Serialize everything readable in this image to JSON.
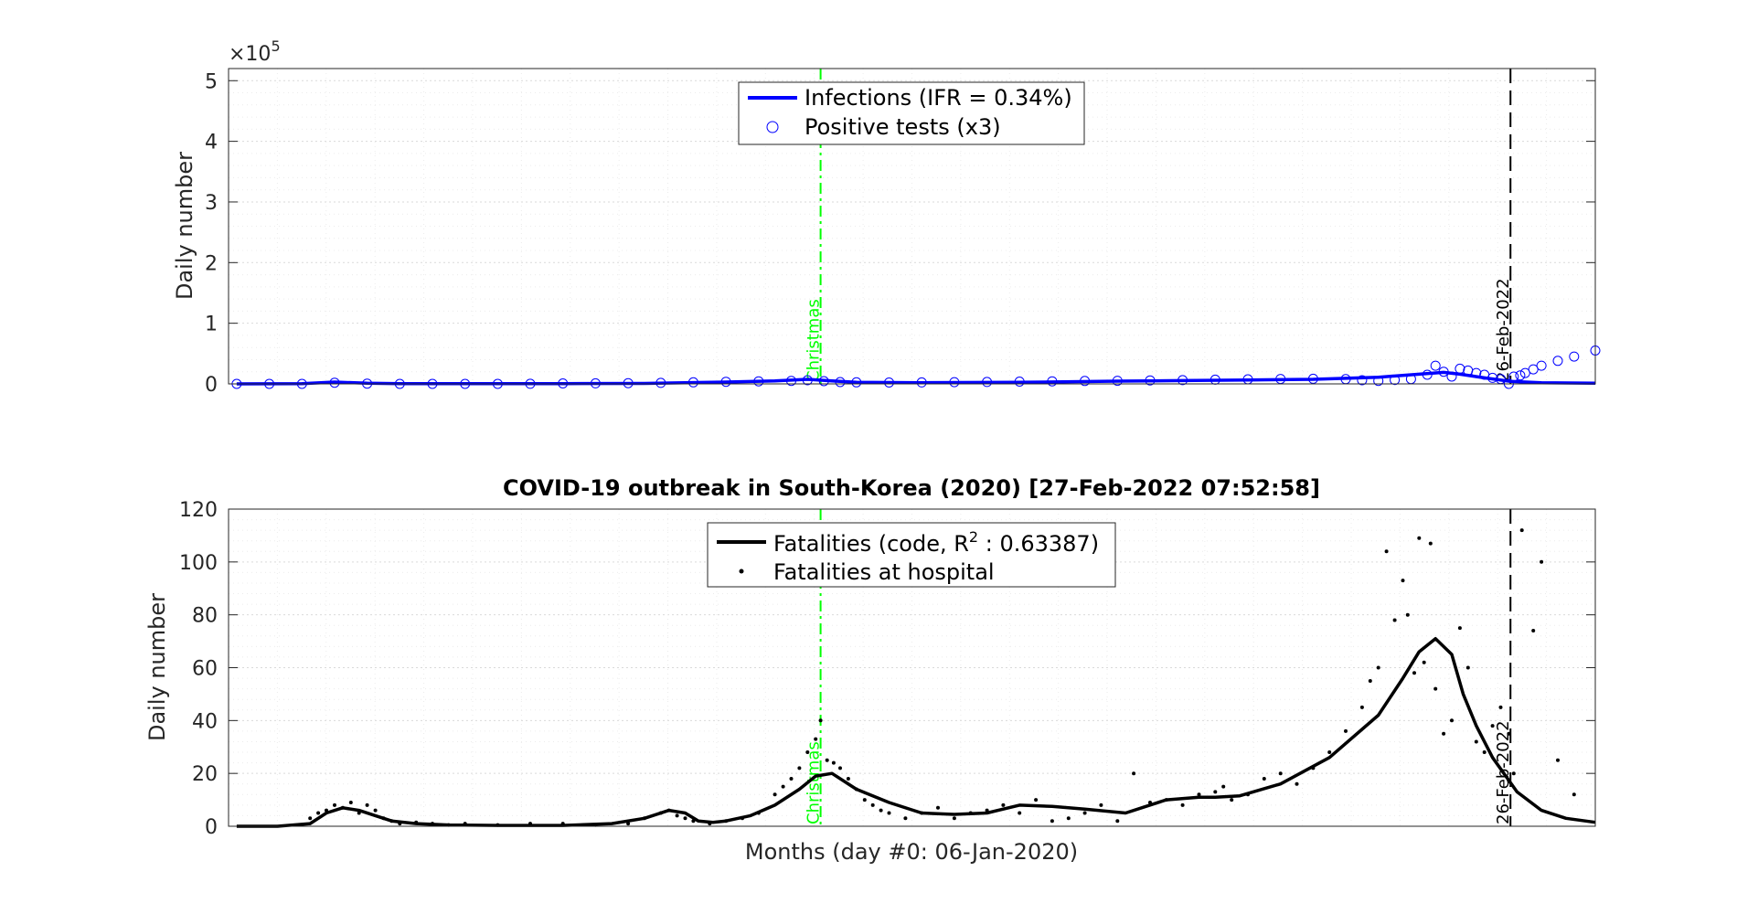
{
  "chart_data": [
    {
      "type": "line",
      "panel": "top",
      "title": "",
      "xlabel": "",
      "ylabel": "Daily number",
      "y_exponent_label": "×10",
      "y_exponent_power": "5",
      "xlim": [
        -5,
        833
      ],
      "ylim": [
        0,
        520000
      ],
      "y_ticks": [
        0,
        100000,
        200000,
        300000,
        400000,
        500000
      ],
      "y_tick_labels": [
        "0",
        "1",
        "2",
        "3",
        "4",
        "5"
      ],
      "grid": true,
      "legend": {
        "position": "top-center",
        "entries": [
          "Infections (IFR = 0.34%)",
          "Positive tests (x3)"
        ]
      },
      "vlines": [
        {
          "x": 358,
          "label": "Christmas",
          "color": "#00ff00",
          "style": "dash-dot"
        },
        {
          "x": 781,
          "label": "26-Feb-2022",
          "color": "#000000",
          "style": "dashed"
        }
      ],
      "series": [
        {
          "name": "Infections (IFR = 0.34%)",
          "kind": "line",
          "color": "#0000ff",
          "x": [
            0,
            40,
            60,
            80,
            100,
            140,
            200,
            250,
            300,
            330,
            350,
            365,
            380,
            420,
            480,
            540,
            580,
            620,
            660,
            700,
            725,
            740,
            750,
            765,
            781,
            800,
            833
          ],
          "values": [
            0,
            500,
            3000,
            1000,
            500,
            300,
            500,
            700,
            3000,
            5000,
            7500,
            5000,
            2500,
            2000,
            2500,
            4500,
            5500,
            6500,
            7500,
            11000,
            16000,
            19000,
            16000,
            10000,
            4000,
            2000,
            1000
          ]
        },
        {
          "name": "Positive tests (x3)",
          "kind": "scatter",
          "color": "#0000ff",
          "x": [
            0,
            20,
            40,
            60,
            80,
            100,
            120,
            140,
            160,
            180,
            200,
            220,
            240,
            260,
            280,
            300,
            320,
            340,
            350,
            360,
            370,
            380,
            400,
            420,
            440,
            460,
            480,
            500,
            520,
            540,
            560,
            580,
            600,
            620,
            640,
            660,
            680,
            690,
            700,
            710,
            720,
            730,
            735,
            740,
            745,
            750,
            755,
            760,
            765,
            770,
            775,
            780,
            783,
            787,
            790,
            795,
            800,
            810,
            820,
            833
          ],
          "values": [
            0,
            -2000,
            -1000,
            2000,
            500,
            0,
            -500,
            -600,
            -300,
            200,
            700,
            900,
            1200,
            1600,
            2500,
            3500,
            4200,
            5000,
            6000,
            4500,
            3000,
            2500,
            2200,
            2400,
            2800,
            3200,
            3800,
            4200,
            4800,
            5200,
            5800,
            6200,
            7000,
            7500,
            8200,
            8500,
            7800,
            6000,
            5000,
            6500,
            8000,
            15000,
            30000,
            20000,
            12000,
            25000,
            22000,
            18000,
            15000,
            10000,
            8000,
            0,
            12000,
            14000,
            18000,
            24000,
            30000,
            38000,
            45000,
            55000
          ]
        }
      ]
    },
    {
      "type": "line",
      "panel": "bottom",
      "title": "COVID-19 outbreak in South-Korea (2020) [27-Feb-2022 07:52:58]",
      "xlabel": "Months (day #0: 06-Jan-2020)",
      "ylabel": "Daily number",
      "xlim": [
        -5,
        833
      ],
      "ylim": [
        0,
        120
      ],
      "y_ticks": [
        0,
        20,
        40,
        60,
        80,
        100,
        120
      ],
      "y_tick_labels": [
        "0",
        "20",
        "40",
        "60",
        "80",
        "100",
        "120"
      ],
      "grid": true,
      "legend": {
        "position": "top-center",
        "entries": [
          "Fatalities (code, R",
          "2",
          " : 0.63387)",
          "Fatalities at hospital"
        ]
      },
      "vlines": [
        {
          "x": 358,
          "label": "Christmas",
          "color": "#00ff00",
          "style": "dash-dot"
        },
        {
          "x": 781,
          "label": "26-Feb-2022",
          "color": "#000000",
          "style": "dashed"
        }
      ],
      "series": [
        {
          "name": "Fatalities (code, R2 : 0.63387)",
          "kind": "line",
          "color": "#000000",
          "x": [
            0,
            25,
            45,
            55,
            65,
            75,
            85,
            95,
            110,
            130,
            160,
            200,
            230,
            250,
            265,
            275,
            283,
            292,
            300,
            315,
            330,
            345,
            355,
            365,
            380,
            400,
            420,
            440,
            460,
            480,
            500,
            520,
            545,
            570,
            590,
            600,
            615,
            640,
            670,
            700,
            715,
            725,
            735,
            745,
            752,
            760,
            770,
            785,
            800,
            815,
            833
          ],
          "values": [
            0,
            0,
            1,
            5,
            7,
            6,
            4,
            2,
            1,
            0.5,
            0.3,
            0.3,
            1,
            3,
            6,
            5,
            2,
            1.5,
            2,
            4,
            8,
            14,
            19,
            20,
            14,
            9,
            5,
            4.5,
            5,
            8,
            7.5,
            6.5,
            5,
            10,
            11,
            11,
            11.5,
            16,
            26,
            42,
            56,
            66,
            71,
            65,
            50,
            38,
            26,
            13,
            6,
            3,
            1.5
          ]
        },
        {
          "name": "Fatalities at hospital",
          "kind": "scatter",
          "color": "#000000",
          "x": [
            45,
            50,
            55,
            60,
            65,
            70,
            75,
            80,
            85,
            90,
            95,
            100,
            110,
            120,
            130,
            140,
            160,
            180,
            200,
            220,
            240,
            250,
            260,
            265,
            270,
            275,
            280,
            290,
            300,
            310,
            320,
            330,
            335,
            340,
            345,
            350,
            355,
            358,
            362,
            366,
            370,
            375,
            380,
            385,
            390,
            395,
            400,
            410,
            420,
            430,
            440,
            450,
            460,
            470,
            480,
            490,
            500,
            510,
            520,
            530,
            540,
            550,
            560,
            570,
            580,
            590,
            600,
            605,
            610,
            620,
            630,
            640,
            650,
            660,
            670,
            680,
            690,
            695,
            700,
            705,
            710,
            715,
            718,
            722,
            725,
            728,
            732,
            735,
            740,
            745,
            750,
            755,
            760,
            765,
            770,
            775,
            780,
            783,
            788,
            795,
            800,
            810,
            820
          ],
          "values": [
            3,
            5,
            6,
            8,
            7,
            9,
            5,
            8,
            6,
            3,
            2,
            1,
            1.5,
            1,
            0.5,
            1,
            0.5,
            1,
            1,
            0.5,
            1,
            3,
            5,
            6,
            4,
            3,
            2,
            1,
            2,
            3,
            5,
            12,
            15,
            18,
            22,
            28,
            33,
            40,
            25,
            24,
            22,
            18,
            14,
            10,
            8,
            6,
            5,
            3,
            5,
            7,
            3,
            5,
            6,
            8,
            5,
            10,
            2,
            3,
            5,
            8,
            2,
            20,
            9,
            10,
            8,
            12,
            13,
            15,
            10,
            12,
            18,
            20,
            16,
            22,
            28,
            36,
            45,
            55,
            60,
            104,
            78,
            93,
            80,
            58,
            109,
            62,
            107,
            52,
            35,
            40,
            75,
            60,
            32,
            28,
            38,
            45,
            35,
            20,
            112,
            74,
            100,
            25,
            12
          ]
        }
      ]
    }
  ]
}
